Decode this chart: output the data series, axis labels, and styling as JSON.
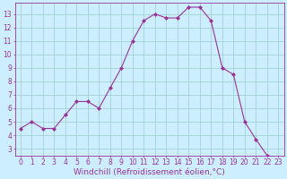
{
  "x": [
    0,
    1,
    2,
    3,
    4,
    5,
    6,
    7,
    8,
    9,
    10,
    11,
    12,
    13,
    14,
    15,
    16,
    17,
    18,
    19,
    20,
    21,
    22,
    23
  ],
  "y": [
    4.5,
    5.0,
    4.5,
    4.5,
    5.5,
    6.5,
    6.5,
    6.0,
    7.5,
    9.0,
    11.0,
    12.5,
    13.0,
    12.7,
    12.7,
    13.5,
    13.5,
    12.5,
    9.0,
    8.5,
    5.0,
    3.7,
    2.5,
    2.3
  ],
  "line_color": "#993399",
  "marker": "D",
  "marker_size": 2,
  "bg_color": "#cceeff",
  "grid_color": "#99cccc",
  "xlabel": "Windchill (Refroidissement éolien,°C)",
  "xlim": [
    -0.5,
    23.5
  ],
  "ylim": [
    2.5,
    13.8
  ],
  "yticks": [
    3,
    4,
    5,
    6,
    7,
    8,
    9,
    10,
    11,
    12,
    13
  ],
  "xticks": [
    0,
    1,
    2,
    3,
    4,
    5,
    6,
    7,
    8,
    9,
    10,
    11,
    12,
    13,
    14,
    15,
    16,
    17,
    18,
    19,
    20,
    21,
    22,
    23
  ],
  "tick_fontsize": 5.5,
  "xlabel_fontsize": 6.5,
  "spine_color": "#993399",
  "text_color": "#993399"
}
